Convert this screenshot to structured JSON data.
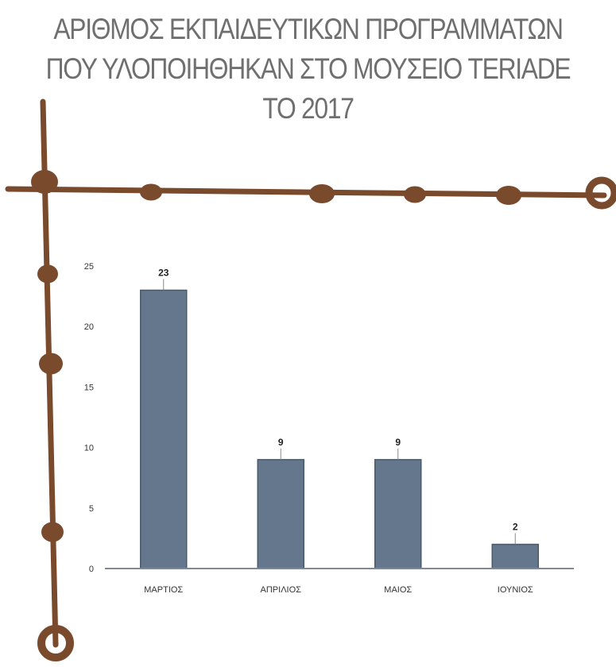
{
  "title_lines": [
    "ΑΡΙΘΜΟΣ ΕΚΠΑΙΔΕΥΤΙΚΩΝ ΠΡΟΓΡΑΜΜΑΤΩΝ",
    "ΠΟΥ ΥΛΟΠΟΙΗΘΗΚΑΝ ΣΤΟ ΜΟΥΣΕΙΟ TERIADE",
    "ΤΟ 2017"
  ],
  "colors": {
    "bar": "#64778c",
    "bar_edge": "#4a5a6b",
    "rope": "#7a4a2d",
    "title": "#6f6f6f",
    "axis": "#7f8a96"
  },
  "chart_data": {
    "type": "bar",
    "title": "ΑΡΙΘΜΟΣ ΕΚΠΑΙΔΕΥΤΙΚΩΝ ΠΡΟΓΡΑΜΜΑΤΩΝ ΠΟΥ ΥΛΟΠΟΙΗΘΗΚΑΝ ΣΤΟ ΜΟΥΣΕΙΟ TERIADE ΤΟ 2017",
    "categories": [
      "ΜΑΡΤΙΟΣ",
      "ΑΠΡΙΛΙΟΣ",
      "ΜΑΙΟΣ",
      "ΙΟΥΝΙΟΣ"
    ],
    "values": [
      23,
      9,
      9,
      2
    ],
    "data_labels": [
      "23",
      "9",
      "9",
      "2"
    ],
    "ylim": [
      0,
      25
    ],
    "yticks": [
      0,
      5,
      10,
      15,
      20,
      25
    ],
    "grid": false,
    "legend": "none"
  }
}
